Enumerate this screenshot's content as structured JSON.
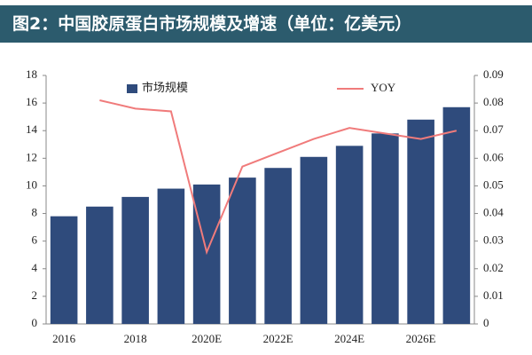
{
  "chart_data": {
    "type": "bar",
    "title": "图2：中国胶原蛋白市场规模及增速（单位：亿美元）",
    "categories": [
      "2016",
      null,
      "2018",
      null,
      "2020E",
      null,
      "2022E",
      null,
      "2024E",
      null,
      "2026E",
      null
    ],
    "series": [
      {
        "name": "市场规模",
        "color": "#2f4b7c",
        "values": [
          7.8,
          8.5,
          9.2,
          9.8,
          10.1,
          10.6,
          11.3,
          12.1,
          12.9,
          13.8,
          14.8,
          15.7
        ]
      },
      {
        "name": "YOY",
        "type": "line",
        "axis": "y2",
        "color": "#f07b7b",
        "values": [
          null,
          0.081,
          0.078,
          0.077,
          0.026,
          0.057,
          0.062,
          0.067,
          0.071,
          0.069,
          0.067,
          0.07
        ]
      }
    ],
    "ylim": [
      0,
      18
    ],
    "yticks": [
      0,
      2,
      4,
      6,
      8,
      10,
      12,
      14,
      16,
      18
    ],
    "y2lim": [
      0,
      0.09
    ],
    "y2ticks": [
      0,
      0.01,
      0.02,
      0.03,
      0.04,
      0.05,
      0.06,
      0.07,
      0.08,
      0.09
    ]
  }
}
